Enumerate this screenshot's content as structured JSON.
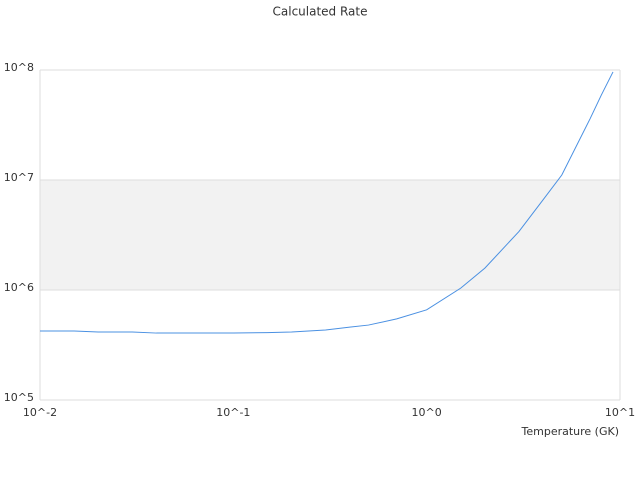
{
  "chart_data": {
    "type": "line",
    "title": "Calculated Rate",
    "x_label": "Temperature (GK)",
    "x": [
      0.01,
      0.015,
      0.02,
      0.03,
      0.04,
      0.06,
      0.1,
      0.15,
      0.2,
      0.3,
      0.4,
      0.5,
      0.7,
      1,
      1.5,
      2,
      3,
      4,
      5,
      7,
      8,
      9.2
    ],
    "series": [
      {
        "color": "#4a90e2",
        "values": [
          424000,
          424000,
          415000,
          415000,
          406000,
          406000,
          406000,
          410000,
          415000,
          433000,
          460000,
          480000,
          546000,
          660000,
          1040000,
          1580000,
          3400000,
          6600000,
          11100000,
          36000000,
          59000000,
          96000000
        ]
      }
    ],
    "xlog": true,
    "ylog": true,
    "xlim": [
      0.01,
      10
    ],
    "ylim": [
      100000,
      100000000
    ],
    "xticks": [
      {
        "value": 0.01,
        "label": "10^-2"
      },
      {
        "value": 0.1,
        "label": "10^-1"
      },
      {
        "value": 1,
        "label": "10^0"
      },
      {
        "value": 10,
        "label": "10^1"
      }
    ],
    "yticks": [
      {
        "value": 100000,
        "label": "10^5"
      },
      {
        "value": 1000000,
        "label": "10^6"
      },
      {
        "value": 10000000,
        "label": "10^7"
      },
      {
        "value": 100000000,
        "label": "10^8"
      }
    ],
    "grid": true,
    "band_color": "#f2f2f2"
  }
}
